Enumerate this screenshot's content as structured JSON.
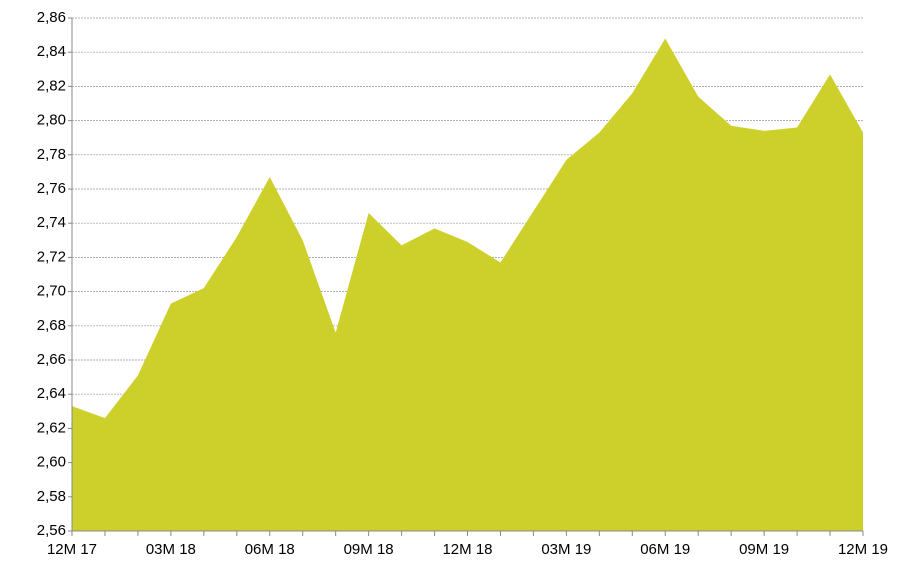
{
  "chart_data": {
    "type": "area",
    "categories": [
      "12M 17",
      null,
      null,
      "03M 18",
      null,
      null,
      "06M 18",
      null,
      null,
      "09M 18",
      null,
      null,
      "12M 18",
      null,
      null,
      "03M 19",
      null,
      null,
      "06M 19",
      null,
      null,
      "09M 19",
      null,
      null,
      "12M 19"
    ],
    "values": [
      2.633,
      2.626,
      2.651,
      2.693,
      2.702,
      2.732,
      2.767,
      2.73,
      2.676,
      2.746,
      2.727,
      2.737,
      2.729,
      2.717,
      2.747,
      2.777,
      2.793,
      2.816,
      2.848,
      2.814,
      2.797,
      2.794,
      2.796,
      2.827,
      2.793
    ],
    "color": "#cdd02b",
    "ylim": [
      2.56,
      2.86
    ],
    "yticks": [
      {
        "value": 2.56,
        "label": "2,56"
      },
      {
        "value": 2.58,
        "label": "2,58"
      },
      {
        "value": 2.6,
        "label": "2,60"
      },
      {
        "value": 2.62,
        "label": "2,62"
      },
      {
        "value": 2.64,
        "label": "2,64"
      },
      {
        "value": 2.66,
        "label": "2,66"
      },
      {
        "value": 2.68,
        "label": "2,68"
      },
      {
        "value": 2.7,
        "label": "2,70"
      },
      {
        "value": 2.72,
        "label": "2,72"
      },
      {
        "value": 2.74,
        "label": "2,74"
      },
      {
        "value": 2.76,
        "label": "2,76"
      },
      {
        "value": 2.78,
        "label": "2,78"
      },
      {
        "value": 2.8,
        "label": "2,80"
      },
      {
        "value": 2.82,
        "label": "2,82"
      },
      {
        "value": 2.84,
        "label": "2,84"
      },
      {
        "value": 2.86,
        "label": "2,86"
      }
    ],
    "grid": true
  }
}
